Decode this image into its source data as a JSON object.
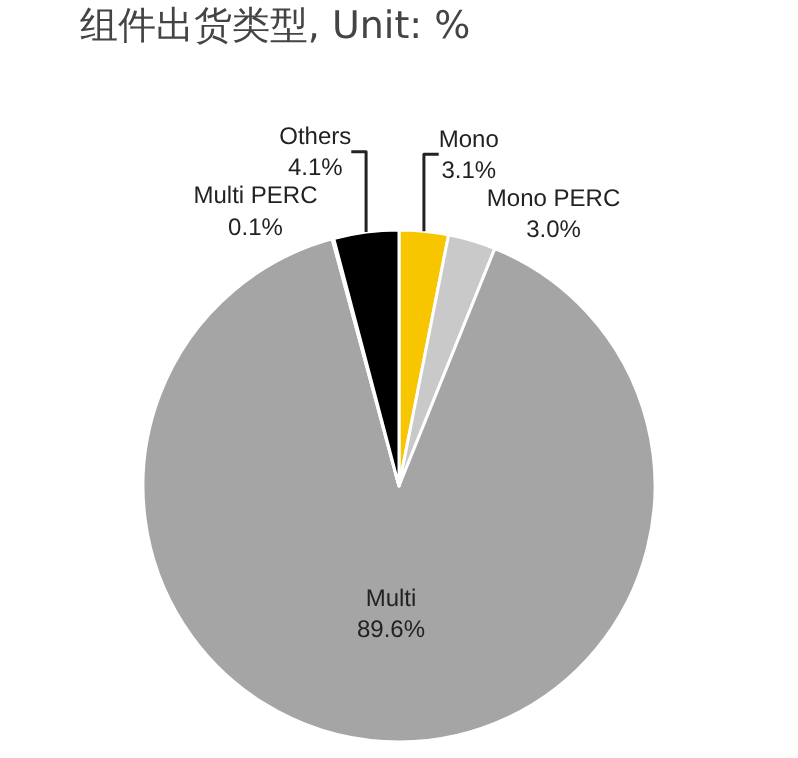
{
  "chart_data": {
    "type": "pie",
    "title": "组件出货类型, Unit: %",
    "categories": [
      "Mono",
      "Mono PERC",
      "Multi",
      "Multi PERC",
      "Others"
    ],
    "values": [
      3.1,
      3.0,
      89.6,
      0.1,
      4.1
    ],
    "value_labels": [
      "3.1%",
      "3.0%",
      "89.6%",
      "0.1%",
      "4.1%"
    ],
    "colors": [
      "#f7c600",
      "#c9c9c9",
      "#a5a5a5",
      "#7f7f7f",
      "#000000"
    ],
    "legend": false
  }
}
